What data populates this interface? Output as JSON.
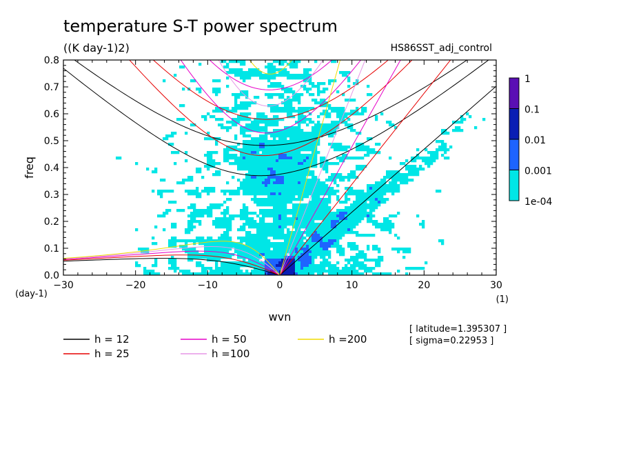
{
  "chart_data": {
    "type": "heatmap",
    "title": "temperature S-T power spectrum",
    "units": "((K day-1)2)",
    "experiment": "HS86SST_adj_control",
    "xlabel": "wvn",
    "ylabel": "freq",
    "xunit": "(1)",
    "yunit": "(day-1)",
    "xlim": [
      -30,
      30
    ],
    "ylim": [
      0,
      0.8
    ],
    "xticks": [
      "-30",
      "-20",
      "-10",
      "0",
      "10",
      "20",
      "30"
    ],
    "yticks": [
      "0.0",
      "0.1",
      "0.2",
      "0.3",
      "0.4",
      "0.5",
      "0.6",
      "0.7",
      "0.8"
    ],
    "colorbar": {
      "labels": [
        "1",
        "0.1",
        "0.01",
        "0.001",
        "1e-04"
      ],
      "colors": [
        "#5a0fb4",
        "#0a1eb4",
        "#1e64ff",
        "#00e6e6"
      ]
    },
    "dispersion_curves": [
      {
        "label": "h = 12",
        "h": 12,
        "color": "#000000"
      },
      {
        "label": "h = 25",
        "h": 25,
        "color": "#e60000"
      },
      {
        "label": "h = 50",
        "h": 50,
        "color": "#e600c8"
      },
      {
        "label": "h =100",
        "h": 100,
        "color": "#e696e6"
      },
      {
        "label": "h =200",
        "h": 200,
        "color": "#f0dc00"
      }
    ],
    "annotations": [
      "[ latitude=1.395307 ]",
      "[ sigma=0.22953 ]"
    ]
  }
}
